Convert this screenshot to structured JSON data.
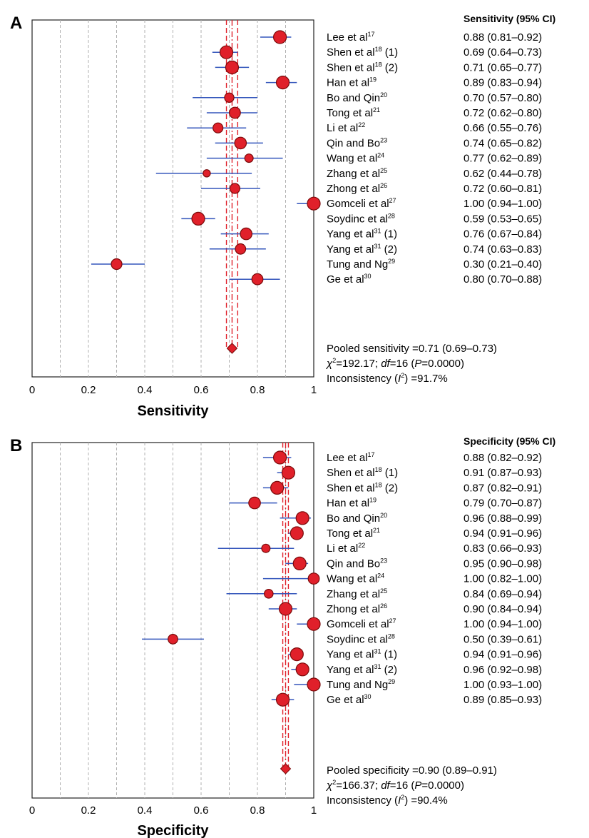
{
  "colors": {
    "marker": "#e0202a",
    "marker_edge": "#7a0a0a",
    "ci_line": "#3355bb",
    "pooled_line": "#e0202a",
    "grid": "#b0b0b0"
  },
  "chart_data": [
    {
      "type": "forest",
      "panel": "A",
      "column_header": "Sensitivity (95% CI)",
      "xlabel": "Sensitivity",
      "xlim": [
        0,
        1
      ],
      "xticks": [
        "0",
        "0.2",
        "0.4",
        "0.6",
        "0.8",
        "1"
      ],
      "grid": "dashed vertical every 0.1",
      "studies": [
        {
          "label": "Lee et al",
          "sup": "17",
          "suffix": "",
          "value": 0.88,
          "low": 0.81,
          "high": 0.92,
          "ci_text": "0.88 (0.81–0.92)"
        },
        {
          "label": "Shen et al",
          "sup": "18",
          "suffix": " (1)",
          "value": 0.69,
          "low": 0.64,
          "high": 0.73,
          "ci_text": "0.69 (0.64–0.73)"
        },
        {
          "label": "Shen et al",
          "sup": "18",
          "suffix": " (2)",
          "value": 0.71,
          "low": 0.65,
          "high": 0.77,
          "ci_text": "0.71 (0.65–0.77)"
        },
        {
          "label": "Han et al",
          "sup": "19",
          "suffix": "",
          "value": 0.89,
          "low": 0.83,
          "high": 0.94,
          "ci_text": "0.89 (0.83–0.94)"
        },
        {
          "label": "Bo and Qin",
          "sup": "20",
          "suffix": "",
          "value": 0.7,
          "low": 0.57,
          "high": 0.8,
          "ci_text": "0.70 (0.57–0.80)"
        },
        {
          "label": "Tong et al",
          "sup": "21",
          "suffix": "",
          "value": 0.72,
          "low": 0.62,
          "high": 0.8,
          "ci_text": "0.72 (0.62–0.80)"
        },
        {
          "label": "Li et al",
          "sup": "22",
          "suffix": "",
          "value": 0.66,
          "low": 0.55,
          "high": 0.76,
          "ci_text": "0.66 (0.55–0.76)"
        },
        {
          "label": "Qin and Bo",
          "sup": "23",
          "suffix": "",
          "value": 0.74,
          "low": 0.65,
          "high": 0.82,
          "ci_text": "0.74 (0.65–0.82)"
        },
        {
          "label": "Wang et al",
          "sup": "24",
          "suffix": "",
          "value": 0.77,
          "low": 0.62,
          "high": 0.89,
          "ci_text": "0.77 (0.62–0.89)"
        },
        {
          "label": "Zhang et al",
          "sup": "25",
          "suffix": "",
          "value": 0.62,
          "low": 0.44,
          "high": 0.78,
          "ci_text": "0.62 (0.44–0.78)"
        },
        {
          "label": "Zhong et al",
          "sup": "26",
          "suffix": "",
          "value": 0.72,
          "low": 0.6,
          "high": 0.81,
          "ci_text": "0.72 (0.60–0.81)"
        },
        {
          "label": "Gomceli et al",
          "sup": "27",
          "suffix": "",
          "value": 1.0,
          "low": 0.94,
          "high": 1.0,
          "ci_text": "1.00 (0.94–1.00)"
        },
        {
          "label": "Soydinc et al",
          "sup": "28",
          "suffix": "",
          "value": 0.59,
          "low": 0.53,
          "high": 0.65,
          "ci_text": "0.59 (0.53–0.65)"
        },
        {
          "label": "Yang et al",
          "sup": "31",
          "suffix": " (1)",
          "value": 0.76,
          "low": 0.67,
          "high": 0.84,
          "ci_text": "0.76 (0.67–0.84)"
        },
        {
          "label": "Yang et al",
          "sup": "31",
          "suffix": " (2)",
          "value": 0.74,
          "low": 0.63,
          "high": 0.83,
          "ci_text": "0.74 (0.63–0.83)"
        },
        {
          "label": "Tung and Ng",
          "sup": "29",
          "suffix": "",
          "value": 0.3,
          "low": 0.21,
          "high": 0.4,
          "ci_text": "0.30 (0.21–0.40)"
        },
        {
          "label": "Ge et al",
          "sup": "30",
          "suffix": "",
          "value": 0.8,
          "low": 0.7,
          "high": 0.88,
          "ci_text": "0.80 (0.70–0.88)"
        }
      ],
      "pooled": {
        "value": 0.71,
        "low": 0.69,
        "high": 0.73
      },
      "pooled_text": "Pooled sensitivity =0.71 (0.69–0.73)",
      "chi_stat": "=192.17; ",
      "df_text": "=16 (",
      "p_text": "=0.0000)",
      "inconsistency_value": ") =91.7%"
    },
    {
      "type": "forest",
      "panel": "B",
      "column_header": "Specificity (95% CI)",
      "xlabel": "Specificity",
      "xlim": [
        0,
        1
      ],
      "xticks": [
        "0",
        "0.2",
        "0.4",
        "0.6",
        "0.8",
        "1"
      ],
      "grid": "dashed vertical every 0.1",
      "studies": [
        {
          "label": "Lee et al",
          "sup": "17",
          "suffix": "",
          "value": 0.88,
          "low": 0.82,
          "high": 0.92,
          "ci_text": "0.88 (0.82–0.92)"
        },
        {
          "label": "Shen et al",
          "sup": "18",
          "suffix": " (1)",
          "value": 0.91,
          "low": 0.87,
          "high": 0.93,
          "ci_text": "0.91 (0.87–0.93)"
        },
        {
          "label": "Shen et al",
          "sup": "18",
          "suffix": " (2)",
          "value": 0.87,
          "low": 0.82,
          "high": 0.91,
          "ci_text": "0.87 (0.82–0.91)"
        },
        {
          "label": "Han et al",
          "sup": "19",
          "suffix": "",
          "value": 0.79,
          "low": 0.7,
          "high": 0.87,
          "ci_text": "0.79 (0.70–0.87)"
        },
        {
          "label": "Bo and Qin",
          "sup": "20",
          "suffix": "",
          "value": 0.96,
          "low": 0.88,
          "high": 0.99,
          "ci_text": "0.96 (0.88–0.99)"
        },
        {
          "label": "Tong et al",
          "sup": "21",
          "suffix": "",
          "value": 0.94,
          "low": 0.91,
          "high": 0.96,
          "ci_text": "0.94 (0.91–0.96)"
        },
        {
          "label": "Li et al",
          "sup": "22",
          "suffix": "",
          "value": 0.83,
          "low": 0.66,
          "high": 0.93,
          "ci_text": "0.83 (0.66–0.93)"
        },
        {
          "label": "Qin and Bo",
          "sup": "23",
          "suffix": "",
          "value": 0.95,
          "low": 0.9,
          "high": 0.98,
          "ci_text": "0.95 (0.90–0.98)"
        },
        {
          "label": "Wang et al",
          "sup": "24",
          "suffix": "",
          "value": 1.0,
          "low": 0.82,
          "high": 1.0,
          "ci_text": "1.00 (0.82–1.00)"
        },
        {
          "label": "Zhang et al",
          "sup": "25",
          "suffix": "",
          "value": 0.84,
          "low": 0.69,
          "high": 0.94,
          "ci_text": "0.84 (0.69–0.94)"
        },
        {
          "label": "Zhong et al",
          "sup": "26",
          "suffix": "",
          "value": 0.9,
          "low": 0.84,
          "high": 0.94,
          "ci_text": "0.90 (0.84–0.94)"
        },
        {
          "label": "Gomceli et al",
          "sup": "27",
          "suffix": "",
          "value": 1.0,
          "low": 0.94,
          "high": 1.0,
          "ci_text": "1.00 (0.94–1.00)"
        },
        {
          "label": "Soydinc et al",
          "sup": "28",
          "suffix": "",
          "value": 0.5,
          "low": 0.39,
          "high": 0.61,
          "ci_text": "0.50 (0.39–0.61)"
        },
        {
          "label": "Yang et al",
          "sup": "31",
          "suffix": " (1)",
          "value": 0.94,
          "low": 0.91,
          "high": 0.96,
          "ci_text": "0.94 (0.91–0.96)"
        },
        {
          "label": "Yang et al",
          "sup": "31",
          "suffix": " (2)",
          "value": 0.96,
          "low": 0.92,
          "high": 0.98,
          "ci_text": "0.96 (0.92–0.98)"
        },
        {
          "label": "Tung and Ng",
          "sup": "29",
          "suffix": "",
          "value": 1.0,
          "low": 0.93,
          "high": 1.0,
          "ci_text": "1.00 (0.93–1.00)"
        },
        {
          "label": "Ge et al",
          "sup": "30",
          "suffix": "",
          "value": 0.89,
          "low": 0.85,
          "high": 0.93,
          "ci_text": "0.89 (0.85–0.93)"
        }
      ],
      "pooled": {
        "value": 0.9,
        "low": 0.89,
        "high": 0.91
      },
      "pooled_text": "Pooled specificity =0.90 (0.89–0.91)",
      "chi_stat": "=166.37; ",
      "df_text": "=16 (",
      "p_text": "=0.0000)",
      "inconsistency_value": ") =90.4%"
    }
  ],
  "common_text": {
    "chi_symbol": "χ",
    "chi_exp": "2",
    "df_label": "df",
    "p_label": "P",
    "inconsistency_label": "Inconsistency (",
    "i_symbol": "I",
    "i_exp": "2"
  }
}
